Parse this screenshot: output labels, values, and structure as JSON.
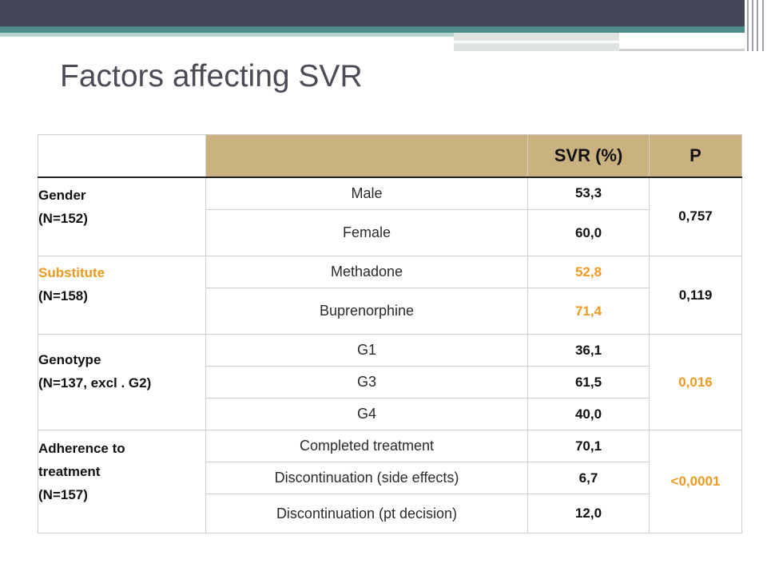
{
  "title": "Factors affecting SVR",
  "colors": {
    "header_fill": "#c9b27f",
    "highlight": "#ee9a22",
    "top_bar": "#434656",
    "teal_band": "#4d8c88"
  },
  "table": {
    "header": {
      "svr": "SVR (%)",
      "p": "P"
    },
    "groups": [
      {
        "label": "Gender",
        "n": "(N=152)",
        "label_highlight": false,
        "p": "0,757",
        "p_highlight": false,
        "rows": [
          {
            "item": "Male",
            "svr": "53,3",
            "svr_highlight": false
          },
          {
            "item": "Female",
            "svr": "60,0",
            "svr_highlight": false
          }
        ]
      },
      {
        "label": "Substitute",
        "n": "(N=158)",
        "label_highlight": true,
        "p": "0,119",
        "p_highlight": false,
        "rows": [
          {
            "item": "Methadone",
            "svr": "52,8",
            "svr_highlight": true
          },
          {
            "item": "Buprenorphine",
            "svr": "71,4",
            "svr_highlight": true
          }
        ]
      },
      {
        "label": "Genotype",
        "n": "(N=137, excl . G2)",
        "label_highlight": false,
        "p": "0,016",
        "p_highlight": true,
        "rows": [
          {
            "item": "G1",
            "svr": "36,1",
            "svr_highlight": false
          },
          {
            "item": "G3",
            "svr": "61,5",
            "svr_highlight": false
          },
          {
            "item": "G4",
            "svr": "40,0",
            "svr_highlight": false
          }
        ]
      },
      {
        "label_lines": [
          "Adherence to",
          "treatment"
        ],
        "n": "(N=157)",
        "label_highlight": false,
        "p": "<0,0001",
        "p_highlight": true,
        "rows": [
          {
            "item": "Completed treatment",
            "svr": "70,1",
            "svr_highlight": false
          },
          {
            "item": "Discontinuation (side effects)",
            "svr": "6,7",
            "svr_highlight": false
          },
          {
            "item": "Discontinuation (pt decision)",
            "svr": "12,0",
            "svr_highlight": false
          }
        ]
      }
    ]
  }
}
